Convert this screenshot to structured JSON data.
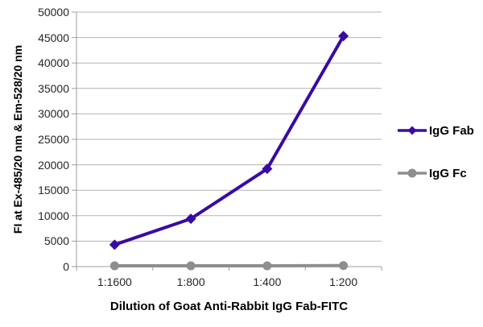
{
  "chart_data": {
    "type": "line",
    "title": "",
    "categories": [
      "1:1600",
      "1:800",
      "1:400",
      "1:200"
    ],
    "series": [
      {
        "name": "IgG Fab",
        "color": "#3A0BA3",
        "marker": "diamond",
        "values": [
          4300,
          9400,
          19200,
          45300
        ]
      },
      {
        "name": "IgG Fc",
        "color": "#8E8E8E",
        "marker": "circle",
        "values": [
          150,
          150,
          150,
          200
        ]
      }
    ],
    "xlabel": "Dilution of Goat Anti-Rabbit IgG Fab-FITC",
    "ylabel": "FI at Ex-485/20 nm & Em-528/20 nm",
    "ylim": [
      0,
      50000
    ],
    "yticks": [
      0,
      5000,
      10000,
      15000,
      20000,
      25000,
      30000,
      35000,
      40000,
      45000,
      50000
    ],
    "grid": true,
    "legend_position": "right",
    "colors": {
      "gridline": "#B3B3B3",
      "axis": "#9E9E9E",
      "tick_text": "#262626",
      "title_text": "#000000",
      "background": "#FFFFFF"
    }
  }
}
